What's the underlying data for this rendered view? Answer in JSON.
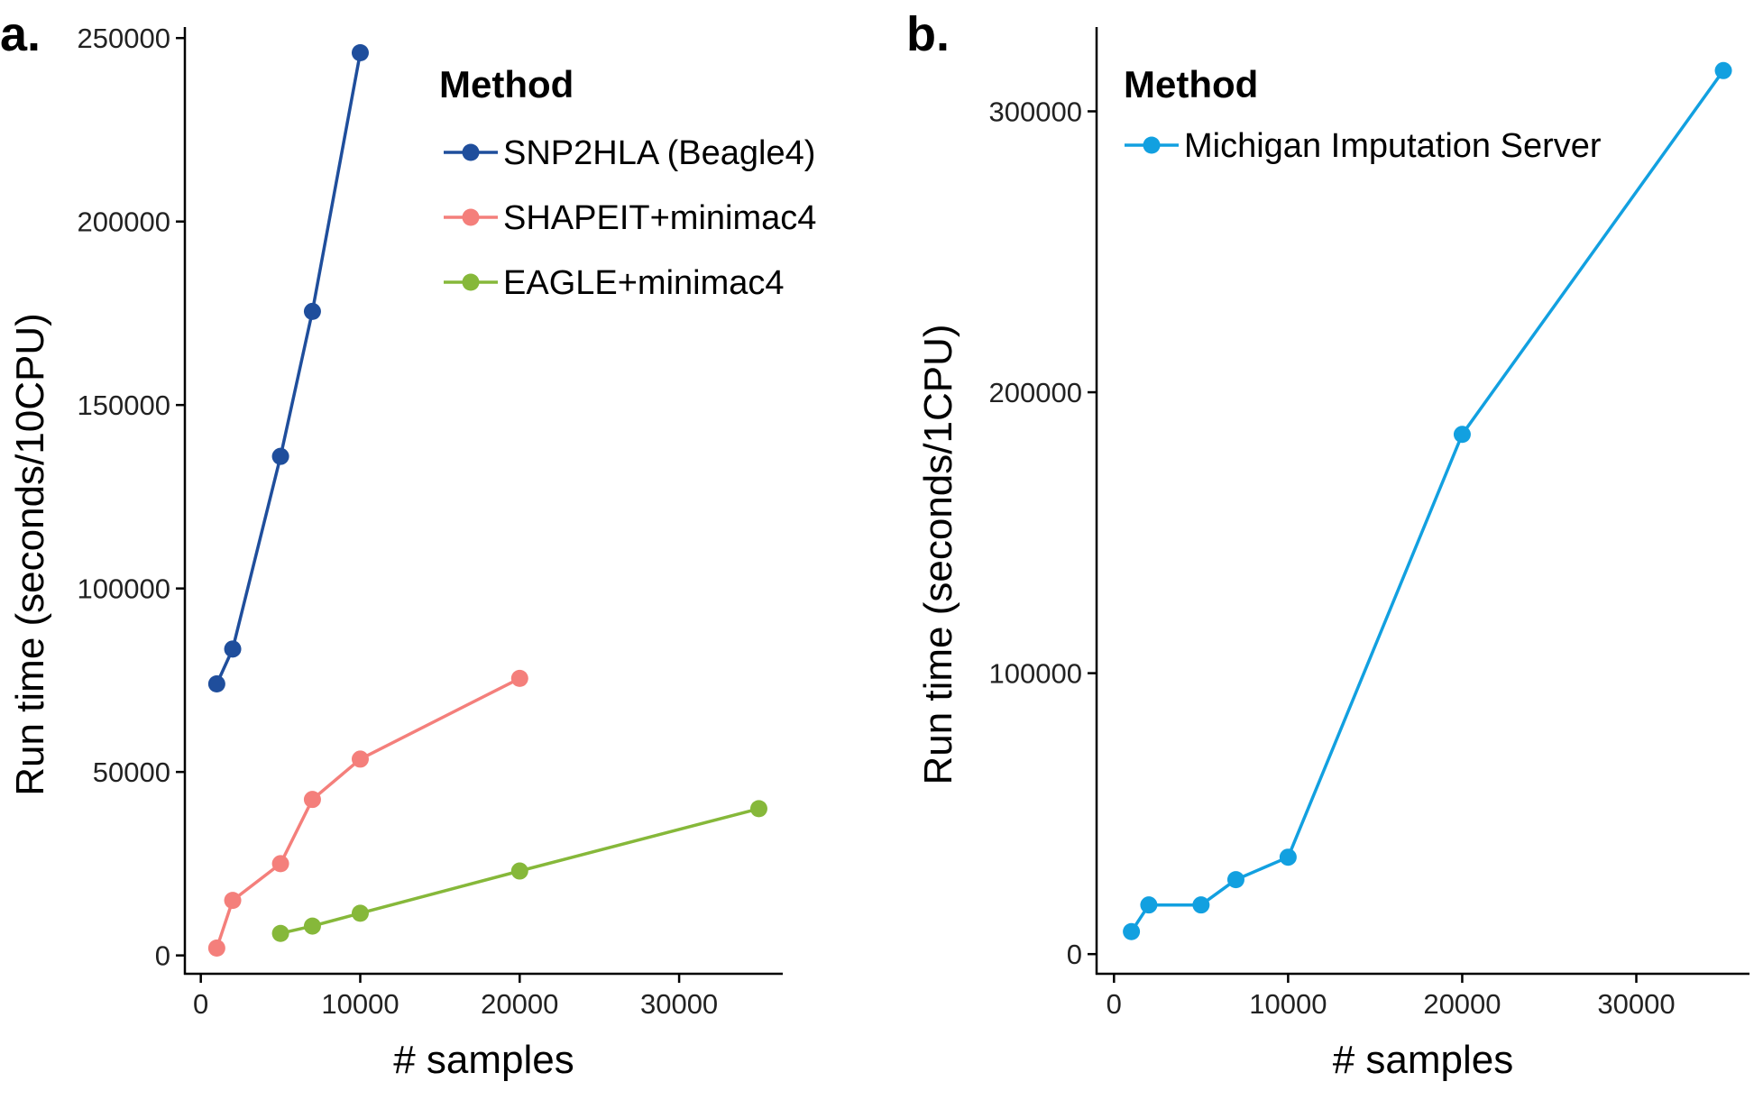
{
  "chart_data": [
    {
      "type": "line",
      "panel_label": "a.",
      "xlabel": "# samples",
      "ylabel": "Run time (seconds/10CPU)",
      "xlim": [
        -1000,
        36500
      ],
      "ylim": [
        -5000,
        253000
      ],
      "xticks": [
        0,
        10000,
        20000,
        30000
      ],
      "yticks": [
        0,
        50000,
        100000,
        150000,
        200000,
        250000
      ],
      "grid": false,
      "legend": {
        "title": "Method",
        "placement": "top-right-inside"
      },
      "series": [
        {
          "name": "SNP2HLA (Beagle4)",
          "color": "#1f4e9c",
          "x": [
            1000,
            2000,
            5000,
            7000,
            10000
          ],
          "y": [
            74000,
            83500,
            136000,
            175500,
            246000
          ]
        },
        {
          "name": "SHAPEIT+minimac4",
          "color": "#f47f7b",
          "x": [
            1000,
            2000,
            5000,
            7000,
            10000,
            20000
          ],
          "y": [
            2000,
            15000,
            25000,
            42500,
            53500,
            75500
          ]
        },
        {
          "name": "EAGLE+minimac4",
          "color": "#86b83a",
          "x": [
            5000,
            7000,
            10000,
            20000,
            35000
          ],
          "y": [
            6000,
            8000,
            11500,
            23000,
            40000
          ]
        }
      ]
    },
    {
      "type": "line",
      "panel_label": "b.",
      "xlabel": "# samples",
      "ylabel": "Run time (seconds/1CPU)",
      "xlim": [
        -1000,
        36500
      ],
      "ylim": [
        -7000,
        330000
      ],
      "xticks": [
        0,
        10000,
        20000,
        30000
      ],
      "yticks": [
        0,
        100000,
        200000,
        300000
      ],
      "grid": false,
      "legend": {
        "title": "Method",
        "placement": "top-left-inside"
      },
      "series": [
        {
          "name": "Michigan Imputation Server",
          "color": "#12a0e0",
          "x": [
            1000,
            2000,
            5000,
            7000,
            10000,
            20000,
            35000
          ],
          "y": [
            8000,
            17500,
            17500,
            26500,
            34500,
            185000,
            314500
          ]
        }
      ]
    }
  ]
}
